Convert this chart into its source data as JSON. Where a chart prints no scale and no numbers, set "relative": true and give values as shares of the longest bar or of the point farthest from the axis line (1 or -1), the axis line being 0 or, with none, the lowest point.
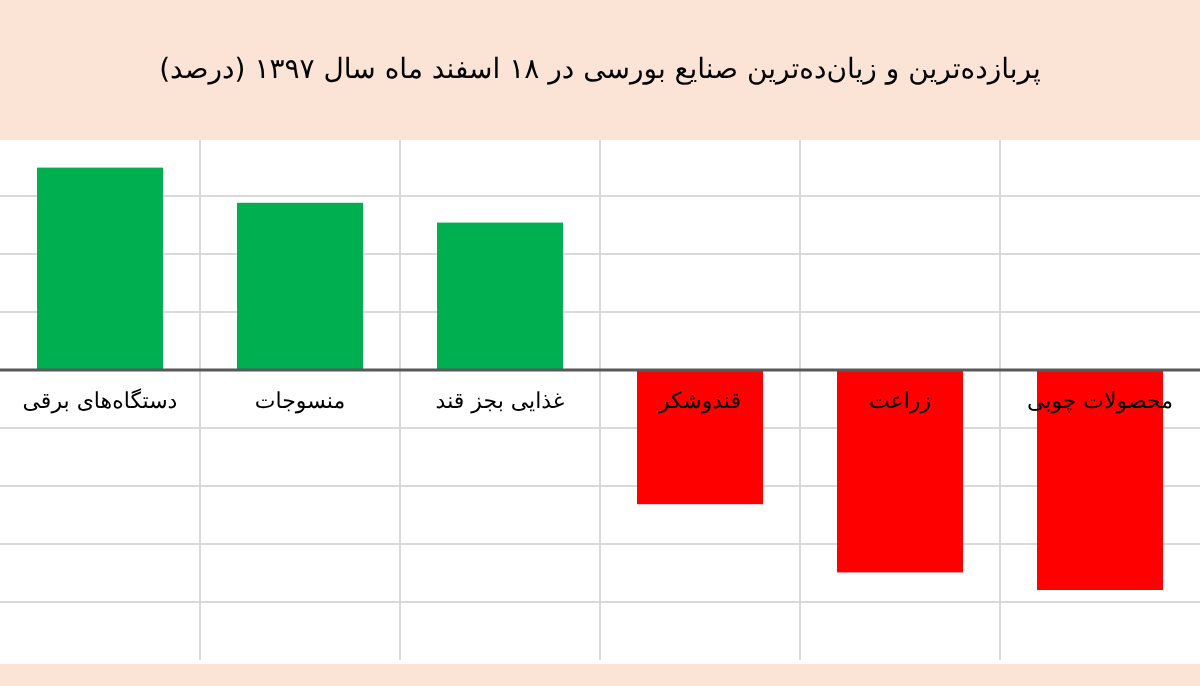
{
  "chart_data": {
    "type": "bar",
    "title": "پربازده‌ترین و زیان‌ده‌ترین صنایع بورسی در ۱۸ اسفند ماه سال ۱۳۹۷ (درصد)",
    "categories": [
      "دستگاه‌های برقی",
      "منسوجات",
      "غذایی بجز قند",
      "قندوشکر",
      "زراعت",
      "محصولات چوبی"
    ],
    "values": [
      0.92,
      0.76,
      0.67,
      -0.61,
      -0.92,
      -1
    ],
    "colors": [
      "#00b050",
      "#00b050",
      "#00b050",
      "#ff0000",
      "#ff0000",
      "#ff0000"
    ],
    "relative": true,
    "grid": true
  }
}
